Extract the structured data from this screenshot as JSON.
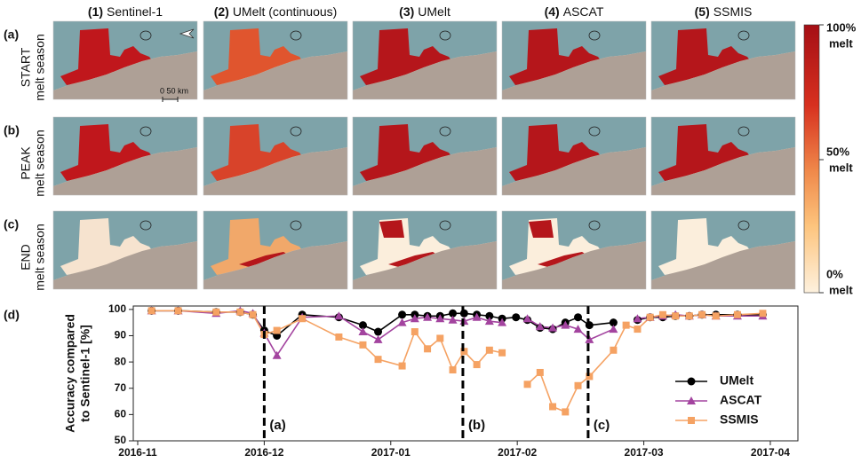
{
  "figure": {
    "columns": [
      {
        "number": "(1)",
        "name": "Sentinel-1"
      },
      {
        "number": "(2)",
        "name": "UMelt (continuous)"
      },
      {
        "number": "(3)",
        "name": "UMelt"
      },
      {
        "number": "(4)",
        "name": "ASCAT"
      },
      {
        "number": "(5)",
        "name": "SSMIS"
      }
    ],
    "rows": [
      {
        "label": "(a)",
        "line1": "START",
        "line2": "melt season"
      },
      {
        "label": "(b)",
        "line1": "PEAK",
        "line2": "melt season"
      },
      {
        "label": "(c)",
        "line1": "END",
        "line2": "melt season"
      }
    ],
    "scale_bar": "0  50 km",
    "colorbar": [
      {
        "value": "100%",
        "unit": "melt"
      },
      {
        "value": "50%",
        "unit": "melt"
      },
      {
        "value": "0%",
        "unit": "melt"
      }
    ]
  },
  "chart_data": {
    "type": "line",
    "panel_label": "(d)",
    "ylabel": [
      "Accuracy compared",
      "to Sentinel-1 [%]"
    ],
    "x": [
      0.11,
      0.32,
      0.62,
      0.81,
      0.91,
      1.0,
      1.1,
      1.3,
      1.59,
      1.78,
      1.9,
      2.09,
      2.19,
      2.29,
      2.39,
      2.49,
      2.58,
      2.68,
      2.78,
      2.88,
      2.99,
      3.08,
      3.18,
      3.28,
      3.38,
      3.48,
      3.57,
      3.76,
      3.86,
      3.95,
      4.05,
      4.15,
      4.25,
      4.36,
      4.46,
      4.57,
      4.74,
      4.94
    ],
    "series": [
      {
        "name": "UMelt",
        "color": "#000000",
        "marker": "circle",
        "values": [
          99.5,
          99.5,
          99,
          99,
          98,
          92,
          90,
          98,
          97,
          94,
          91.5,
          98,
          98,
          97.5,
          97.5,
          98.5,
          98.5,
          98,
          97.5,
          96.5,
          97,
          96,
          93,
          92.5,
          95,
          97,
          94,
          95,
          null,
          96,
          97,
          97,
          97.5,
          97.5,
          98,
          98,
          98,
          98
        ]
      },
      {
        "name": "ASCAT",
        "color": "#a3449f",
        "marker": "triangle",
        "values": [
          99.5,
          99.5,
          98.5,
          99.5,
          98.5,
          91,
          82.5,
          97,
          97.5,
          91.5,
          88.5,
          95,
          96.5,
          97,
          96.5,
          96,
          95.5,
          97,
          95.5,
          95,
          null,
          96.5,
          93.5,
          93,
          94,
          92.5,
          88.5,
          92.5,
          null,
          96.5,
          97,
          97.5,
          98,
          97.5,
          98,
          97.5,
          97.5,
          97.5
        ]
      },
      {
        "name": "SSMIS",
        "color": "#f5a263",
        "marker": "square",
        "values": [
          99.5,
          99.5,
          99,
          99,
          98,
          90.5,
          92,
          96.5,
          89.5,
          86.5,
          81,
          78.5,
          91.5,
          85,
          89,
          77,
          84,
          79,
          84.5,
          83.5,
          null,
          71.5,
          76,
          63,
          61,
          71,
          74.5,
          84.5,
          94,
          92.5,
          97,
          98,
          97.5,
          97.5,
          98,
          97.5,
          98,
          98.5
        ]
      }
    ],
    "xlim": [
      -0.035,
      5.218
    ],
    "xticks": [
      {
        "value": 0,
        "label": "2016-11"
      },
      {
        "value": 1,
        "label": "2016-12"
      },
      {
        "value": 2,
        "label": "2017-01"
      },
      {
        "value": 3,
        "label": "2017-02"
      },
      {
        "value": 4,
        "label": "2017-03"
      },
      {
        "value": 5,
        "label": "2017-04"
      }
    ],
    "ylim": [
      50,
      101.3
    ],
    "yticks": [
      50,
      60,
      70,
      80,
      90,
      100
    ],
    "markers": [
      {
        "x": 1.0,
        "label": "(a)"
      },
      {
        "x": 2.57,
        "label": "(b)"
      },
      {
        "x": 3.56,
        "label": "(c)"
      }
    ],
    "legend": "lower right"
  }
}
